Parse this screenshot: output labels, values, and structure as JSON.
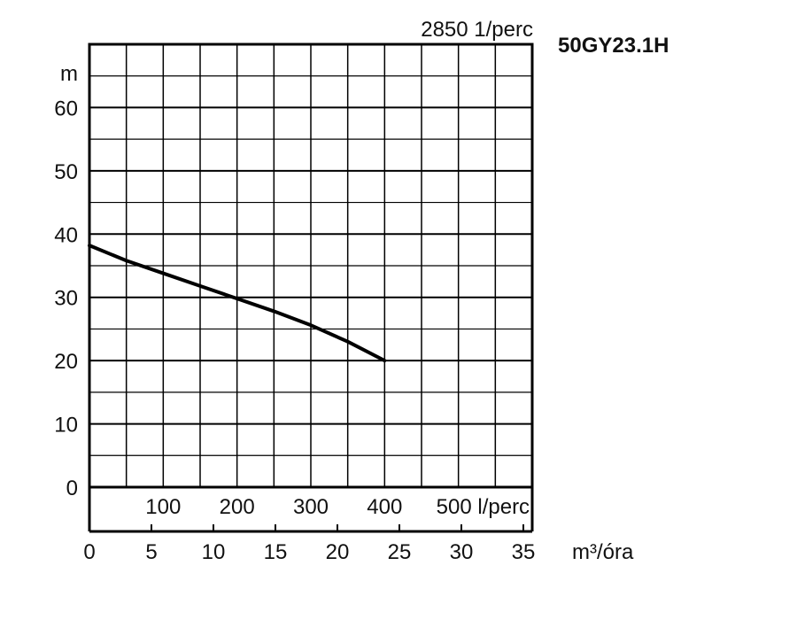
{
  "chart_data": {
    "type": "line",
    "model": "50GY23.1H",
    "speed_label": "2850 1/perc",
    "y_unit": "m",
    "x_unit": "m³/óra",
    "ylim": [
      0,
      70
    ],
    "xlim": [
      0,
      600
    ],
    "y_ticks": [
      "0",
      "10",
      "20",
      "30",
      "40",
      "50",
      "60"
    ],
    "x_ticks_lperc": [
      "100",
      "200",
      "300",
      "400",
      "500 l/perc"
    ],
    "x_ticks_m3h": [
      "0",
      "5",
      "10",
      "15",
      "20",
      "25",
      "30",
      "35"
    ],
    "grid": true,
    "series": [
      {
        "x": [
          0,
          50,
          100,
          150,
          200,
          250,
          300,
          350,
          400
        ],
        "y": [
          38.2,
          35.8,
          33.8,
          31.8,
          29.8,
          27.8,
          25.6,
          23.0,
          20.0
        ]
      }
    ]
  }
}
